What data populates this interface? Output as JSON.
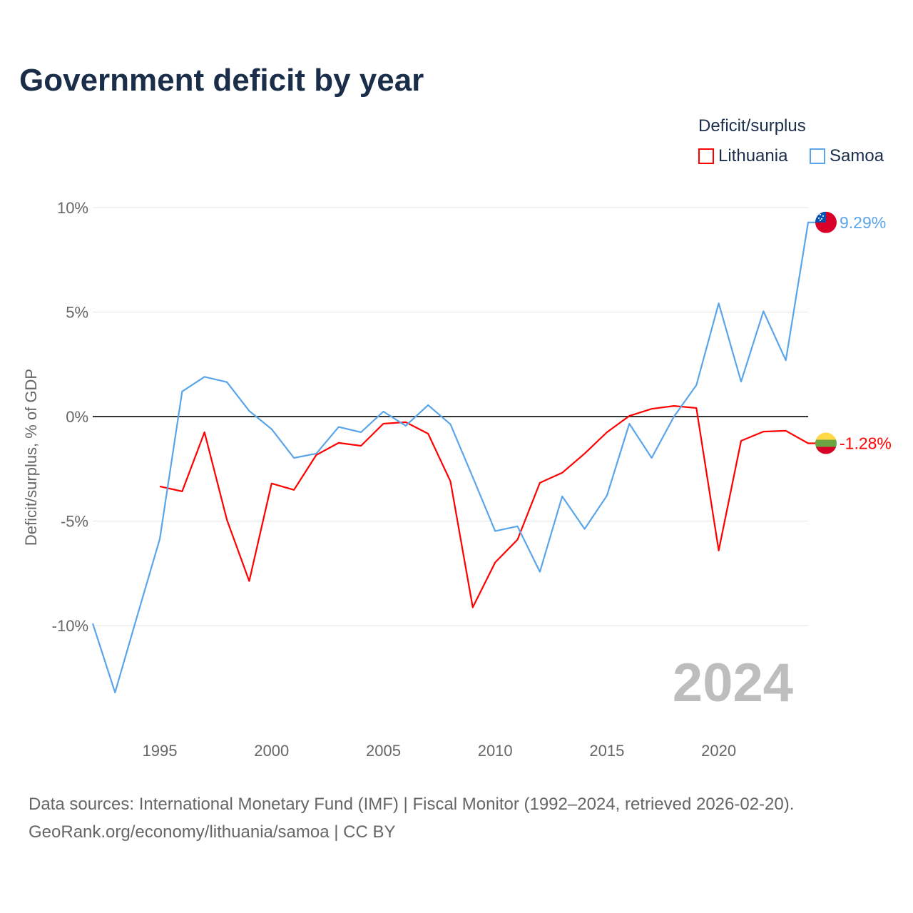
{
  "chart_data": {
    "type": "line",
    "title": "Government deficit by year",
    "ylabel": "Deficit/surplus, % of GDP",
    "xlabel": "",
    "legend_title": "Deficit/surplus",
    "legend_position": "top-right",
    "year_watermark": "2024",
    "xlim": [
      1992,
      2024
    ],
    "ylim": [
      -13.8,
      10
    ],
    "x_ticks": [
      1995,
      2000,
      2005,
      2010,
      2015,
      2020
    ],
    "x_tick_labels": [
      "1995",
      "2000",
      "2005",
      "2010",
      "2015",
      "2020"
    ],
    "y_ticks": [
      10,
      5,
      0,
      -5,
      -10
    ],
    "y_tick_labels": [
      "10%",
      "5%",
      "0%",
      "-5%",
      "-10%"
    ],
    "grid": true,
    "series": [
      {
        "name": "Lithuania",
        "color": "#ff0000",
        "end_label": "-1.28%",
        "flag": "lithuania-flag",
        "x": [
          1995,
          1996,
          1997,
          1998,
          1999,
          2000,
          2001,
          2002,
          2003,
          2004,
          2005,
          2006,
          2007,
          2008,
          2009,
          2010,
          2011,
          2012,
          2013,
          2014,
          2015,
          2016,
          2017,
          2018,
          2019,
          2020,
          2021,
          2022,
          2023,
          2024
        ],
        "values": [
          -3.34,
          -3.58,
          -0.75,
          -4.94,
          -7.87,
          -3.2,
          -3.51,
          -1.84,
          -1.26,
          -1.4,
          -0.34,
          -0.27,
          -0.82,
          -3.1,
          -9.13,
          -6.98,
          -5.89,
          -3.17,
          -2.69,
          -1.77,
          -0.75,
          0.03,
          0.37,
          0.51,
          0.41,
          -6.41,
          -1.16,
          -0.72,
          -0.68,
          -1.28
        ]
      },
      {
        "name": "Samoa",
        "color": "#5aa5ea",
        "end_label": "9.29%",
        "flag": "samoa-flag",
        "x": [
          1992,
          1993,
          1994,
          1995,
          1996,
          1997,
          1998,
          1999,
          2000,
          2001,
          2002,
          2003,
          2004,
          2005,
          2006,
          2007,
          2008,
          2009,
          2010,
          2011,
          2012,
          2013,
          2014,
          2015,
          2016,
          2017,
          2018,
          2019,
          2020,
          2021,
          2022,
          2023,
          2024
        ],
        "values": [
          -9.9,
          -13.2,
          -9.5,
          -5.86,
          1.2,
          1.9,
          1.65,
          0.27,
          -0.6,
          -1.98,
          -1.77,
          -0.5,
          -0.75,
          0.24,
          -0.44,
          0.55,
          -0.37,
          -2.9,
          -5.48,
          -5.25,
          -7.43,
          -3.82,
          -5.38,
          -3.78,
          -0.34,
          -1.98,
          0.0,
          1.5,
          5.42,
          1.67,
          5.04,
          2.69,
          9.29
        ]
      }
    ]
  },
  "source": {
    "line1": "Data sources: International Monetary Fund (IMF) | Fiscal Monitor (1992–2024, retrieved 2026-02-20).",
    "line2": "GeoRank.org/economy/lithuania/samoa | CC BY"
  }
}
